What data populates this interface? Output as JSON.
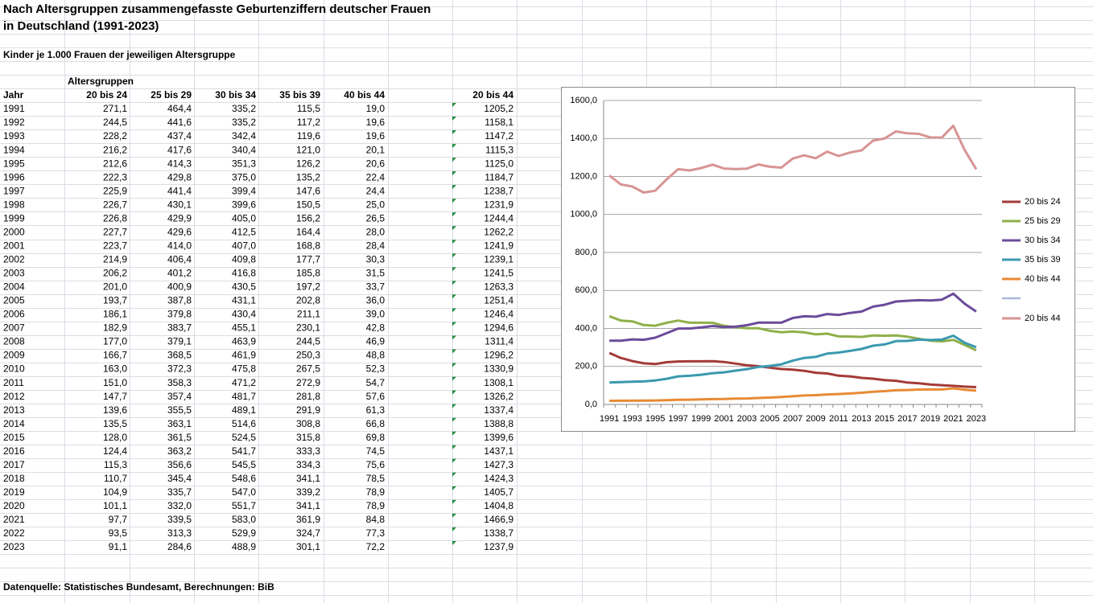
{
  "header": {
    "title_lines": [
      "Nach Altersgruppen zusammengefasste Geburtenziffern deutscher Frauen",
      "in Deutschland (1991-2023)"
    ],
    "subtitle": "Kinder je 1.000 Frauen der jeweiligen Altersgruppe"
  },
  "table": {
    "group_header": "Altersgruppen",
    "columns": [
      "Jahr",
      "20 bis 24",
      "25 bis 29",
      "30 bis 34",
      "35 bis 39",
      "40 bis 44",
      "20 bis 44"
    ],
    "rows": [
      [
        "1991",
        "271,1",
        "464,4",
        "335,2",
        "115,5",
        "19,0",
        "1205,2"
      ],
      [
        "1992",
        "244,5",
        "441,6",
        "335,2",
        "117,2",
        "19,6",
        "1158,1"
      ],
      [
        "1993",
        "228,2",
        "437,4",
        "342,4",
        "119,6",
        "19,6",
        "1147,2"
      ],
      [
        "1994",
        "216,2",
        "417,6",
        "340,4",
        "121,0",
        "20,1",
        "1115,3"
      ],
      [
        "1995",
        "212,6",
        "414,3",
        "351,3",
        "126,2",
        "20,6",
        "1125,0"
      ],
      [
        "1996",
        "222,3",
        "429,8",
        "375,0",
        "135,2",
        "22,4",
        "1184,7"
      ],
      [
        "1997",
        "225,9",
        "441,4",
        "399,4",
        "147,6",
        "24,4",
        "1238,7"
      ],
      [
        "1998",
        "226,7",
        "430,1",
        "399,6",
        "150,5",
        "25,0",
        "1231,9"
      ],
      [
        "1999",
        "226,8",
        "429,9",
        "405,0",
        "156,2",
        "26,5",
        "1244,4"
      ],
      [
        "2000",
        "227,7",
        "429,6",
        "412,5",
        "164,4",
        "28,0",
        "1262,2"
      ],
      [
        "2001",
        "223,7",
        "414,0",
        "407,0",
        "168,8",
        "28,4",
        "1241,9"
      ],
      [
        "2002",
        "214,9",
        "406,4",
        "409,8",
        "177,7",
        "30,3",
        "1239,1"
      ],
      [
        "2003",
        "206,2",
        "401,2",
        "416,8",
        "185,8",
        "31,5",
        "1241,5"
      ],
      [
        "2004",
        "201,0",
        "400,9",
        "430,5",
        "197,2",
        "33,7",
        "1263,3"
      ],
      [
        "2005",
        "193,7",
        "387,8",
        "431,1",
        "202,8",
        "36,0",
        "1251,4"
      ],
      [
        "2006",
        "186,1",
        "379,8",
        "430,4",
        "211,1",
        "39,0",
        "1246,4"
      ],
      [
        "2007",
        "182,9",
        "383,7",
        "455,1",
        "230,1",
        "42,8",
        "1294,6"
      ],
      [
        "2008",
        "177,0",
        "379,1",
        "463,9",
        "244,5",
        "46,9",
        "1311,4"
      ],
      [
        "2009",
        "166,7",
        "368,5",
        "461,9",
        "250,3",
        "48,8",
        "1296,2"
      ],
      [
        "2010",
        "163,0",
        "372,3",
        "475,8",
        "267,5",
        "52,3",
        "1330,9"
      ],
      [
        "2011",
        "151,0",
        "358,3",
        "471,2",
        "272,9",
        "54,7",
        "1308,1"
      ],
      [
        "2012",
        "147,7",
        "357,4",
        "481,7",
        "281,8",
        "57,6",
        "1326,2"
      ],
      [
        "2013",
        "139,6",
        "355,5",
        "489,1",
        "291,9",
        "61,3",
        "1337,4"
      ],
      [
        "2014",
        "135,5",
        "363,1",
        "514,6",
        "308,8",
        "66,8",
        "1388,8"
      ],
      [
        "2015",
        "128,0",
        "361,5",
        "524,5",
        "315,8",
        "69,8",
        "1399,6"
      ],
      [
        "2016",
        "124,4",
        "363,2",
        "541,7",
        "333,3",
        "74,5",
        "1437,1"
      ],
      [
        "2017",
        "115,3",
        "356,6",
        "545,5",
        "334,3",
        "75,6",
        "1427,3"
      ],
      [
        "2018",
        "110,7",
        "345,4",
        "548,6",
        "341,1",
        "78,5",
        "1424,3"
      ],
      [
        "2019",
        "104,9",
        "335,7",
        "547,0",
        "339,2",
        "78,9",
        "1405,7"
      ],
      [
        "2020",
        "101,1",
        "332,0",
        "551,7",
        "341,1",
        "78,9",
        "1404,8"
      ],
      [
        "2021",
        "97,7",
        "339,5",
        "583,0",
        "361,9",
        "84,8",
        "1466,9"
      ],
      [
        "2022",
        "93,5",
        "313,3",
        "529,9",
        "324,7",
        "77,3",
        "1338,7"
      ],
      [
        "2023",
        "91,1",
        "284,6",
        "488,9",
        "301,1",
        "72,2",
        "1237,9"
      ]
    ]
  },
  "chart_data": {
    "type": "line",
    "categories": [
      "1991",
      null,
      "1993",
      null,
      "1995",
      null,
      "1997",
      null,
      "1999",
      null,
      "2001",
      null,
      "2003",
      null,
      "2005",
      null,
      "2007",
      null,
      "2009",
      null,
      "2011",
      null,
      "2013",
      null,
      "2015",
      null,
      "2017",
      null,
      "2019",
      null,
      "2021",
      null,
      "2023"
    ],
    "ylim": [
      0,
      1600
    ],
    "yticks": [
      {
        "value": 0,
        "label": "0,0"
      },
      {
        "value": 200,
        "label": "200,0"
      },
      {
        "value": 400,
        "label": "400,0"
      },
      {
        "value": 600,
        "label": "600,0"
      },
      {
        "value": 800,
        "label": "800,0"
      },
      {
        "value": 1000,
        "label": "1000,0"
      },
      {
        "value": 1200,
        "label": "1200,0"
      },
      {
        "value": 1400,
        "label": "1400,0"
      },
      {
        "value": 1600,
        "label": "1600,0"
      }
    ],
    "grid": true,
    "series": [
      {
        "name": "20 bis 24",
        "color": "#a33b38",
        "values": [
          271.1,
          244.5,
          228.2,
          216.2,
          212.6,
          222.3,
          225.9,
          226.7,
          226.8,
          227.7,
          223.7,
          214.9,
          206.2,
          201.0,
          193.7,
          186.1,
          182.9,
          177.0,
          166.7,
          163.0,
          151.0,
          147.7,
          139.6,
          135.5,
          128.0,
          124.4,
          115.3,
          110.7,
          104.9,
          101.1,
          97.7,
          93.5,
          91.1
        ]
      },
      {
        "name": "25 bis 29",
        "color": "#8fb04a",
        "values": [
          464.4,
          441.6,
          437.4,
          417.6,
          414.3,
          429.8,
          441.4,
          430.1,
          429.9,
          429.6,
          414.0,
          406.4,
          401.2,
          400.9,
          387.8,
          379.8,
          383.7,
          379.1,
          368.5,
          372.3,
          358.3,
          357.4,
          355.5,
          363.1,
          361.5,
          363.2,
          356.6,
          345.4,
          335.7,
          332.0,
          339.5,
          313.3,
          284.6
        ]
      },
      {
        "name": "30 bis 34",
        "color": "#6b4c9a",
        "values": [
          335.2,
          335.2,
          342.4,
          340.4,
          351.3,
          375.0,
          399.4,
          399.6,
          405.0,
          412.5,
          407.0,
          409.8,
          416.8,
          430.5,
          431.1,
          430.4,
          455.1,
          463.9,
          461.9,
          475.8,
          471.2,
          481.7,
          489.1,
          514.6,
          524.5,
          541.7,
          545.5,
          548.6,
          547.0,
          551.7,
          583.0,
          529.9,
          488.9
        ]
      },
      {
        "name": "35 bis 39",
        "color": "#3a99b0",
        "values": [
          115.5,
          117.2,
          119.6,
          121.0,
          126.2,
          135.2,
          147.6,
          150.5,
          156.2,
          164.4,
          168.8,
          177.7,
          185.8,
          197.2,
          202.8,
          211.1,
          230.1,
          244.5,
          250.3,
          267.5,
          272.9,
          281.8,
          291.9,
          308.8,
          315.8,
          333.3,
          334.3,
          341.1,
          339.2,
          341.1,
          361.9,
          324.7,
          301.1
        ]
      },
      {
        "name": "40 bis 44",
        "color": "#e88a35",
        "values": [
          19.0,
          19.6,
          19.6,
          20.1,
          20.6,
          22.4,
          24.4,
          25.0,
          26.5,
          28.0,
          28.4,
          30.3,
          31.5,
          33.7,
          36.0,
          39.0,
          42.8,
          46.9,
          48.8,
          52.3,
          54.7,
          57.6,
          61.3,
          66.8,
          69.8,
          74.5,
          75.6,
          78.5,
          78.9,
          78.9,
          84.8,
          77.3,
          72.2
        ]
      },
      {
        "name": "20 bis 44",
        "color": "#d79493",
        "values": [
          1205.2,
          1158.1,
          1147.2,
          1115.3,
          1125.0,
          1184.7,
          1238.7,
          1231.9,
          1244.4,
          1262.2,
          1241.9,
          1239.1,
          1241.5,
          1263.3,
          1251.4,
          1246.4,
          1294.6,
          1311.4,
          1296.2,
          1330.9,
          1308.1,
          1326.2,
          1337.4,
          1388.8,
          1399.6,
          1437.1,
          1427.3,
          1424.3,
          1405.7,
          1404.8,
          1466.9,
          1338.7,
          1237.9
        ]
      }
    ]
  },
  "footer": {
    "source": "Datenquelle: Statistisches Bundesamt, Berechnungen: BiB"
  }
}
